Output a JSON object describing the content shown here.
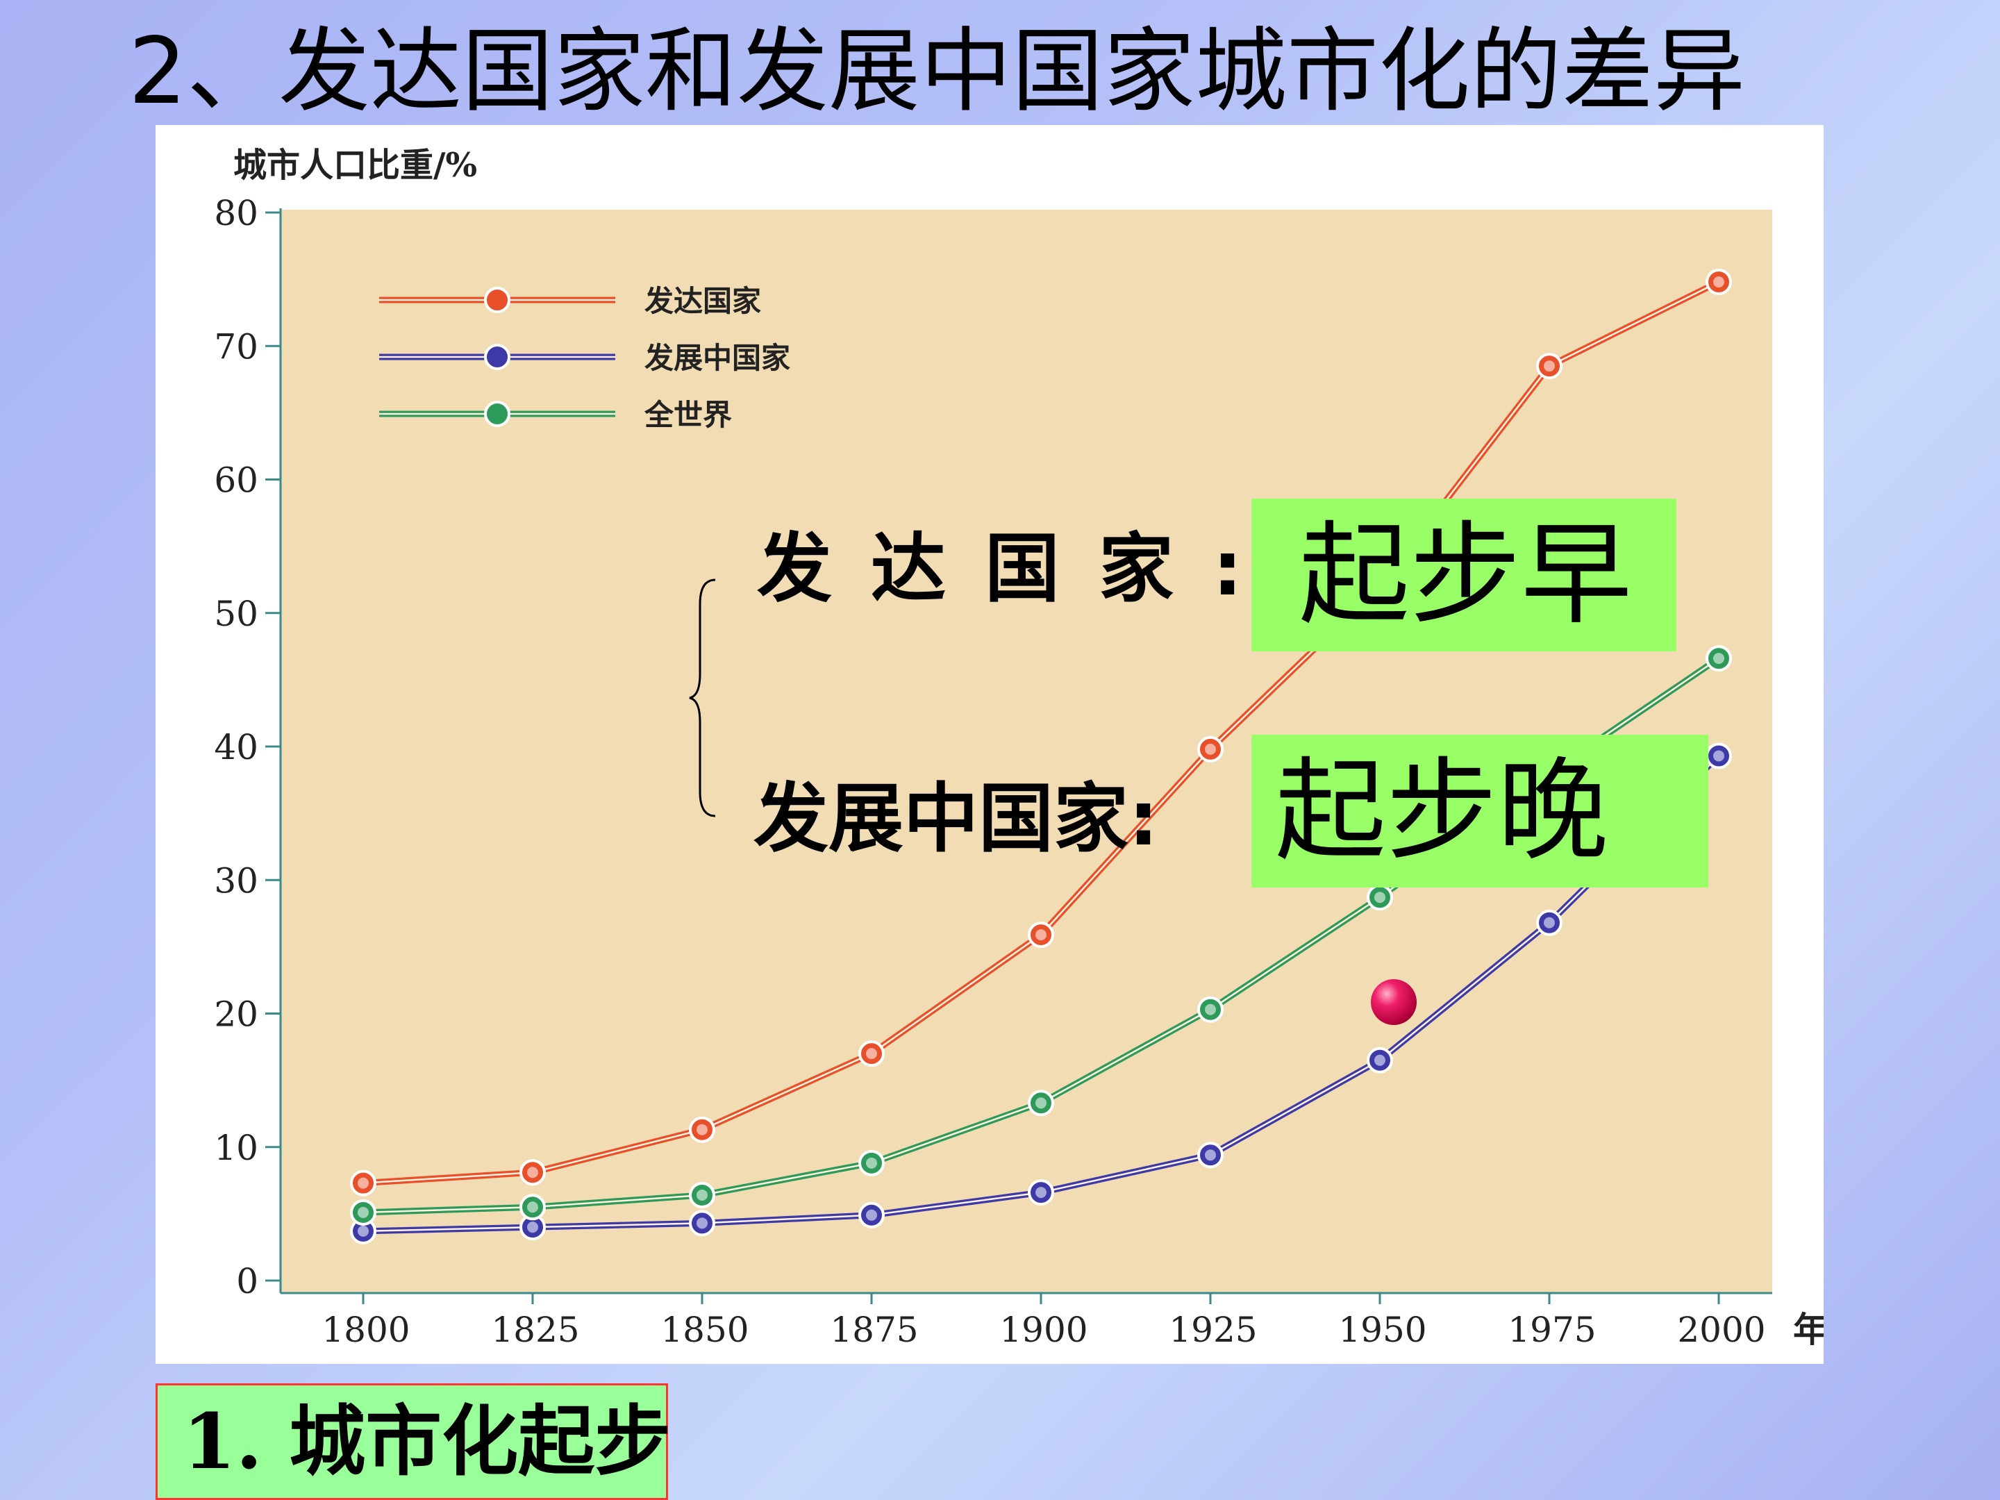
{
  "slide": {
    "title": "2、发达国家和发展中国家城市化的差异",
    "caption": "1. 城市化起步"
  },
  "annotations": {
    "developed_label": "发达国家:",
    "developed_value": "起步早",
    "developing_label": "发展中国家:",
    "developing_value": "起步晚"
  },
  "chart_data": {
    "type": "line",
    "ylabel": "城市人口比重/%",
    "xlabel": "年",
    "x": [
      1800,
      1825,
      1850,
      1875,
      1900,
      1925,
      1950,
      1975,
      2000
    ],
    "ylim": [
      0,
      80
    ],
    "yticks": [
      0,
      10,
      20,
      30,
      40,
      50,
      60,
      70,
      80
    ],
    "grid": false,
    "legend_position": "top-left",
    "series": [
      {
        "name": "发达国家",
        "color": "#e8502a",
        "values": [
          7.3,
          8.1,
          11.3,
          17.0,
          25.9,
          39.8,
          52.0,
          68.5,
          74.8
        ]
      },
      {
        "name": "发展中国家",
        "color": "#3d3aa8",
        "values": [
          3.7,
          4.0,
          4.3,
          4.9,
          6.6,
          9.4,
          16.5,
          26.8,
          39.3
        ]
      },
      {
        "name": "全世界",
        "color": "#2e9a5a",
        "values": [
          5.1,
          5.5,
          6.4,
          8.8,
          13.3,
          20.3,
          28.7,
          38.0,
          46.6
        ]
      }
    ],
    "plot_background": "#f1dcb4"
  }
}
